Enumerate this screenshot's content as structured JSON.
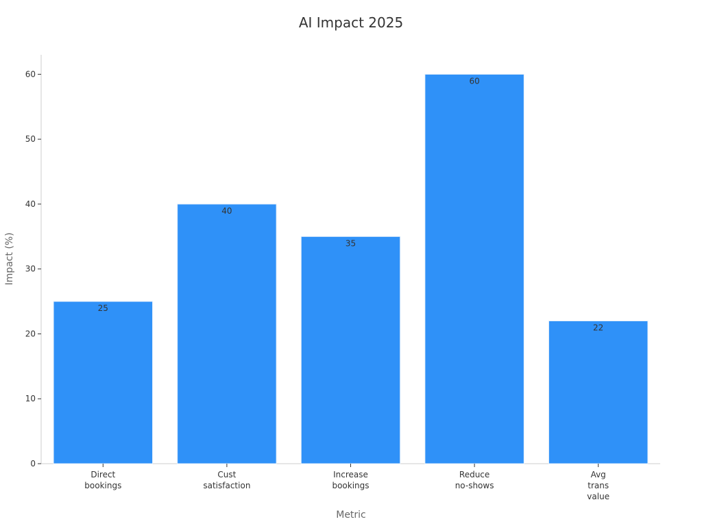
{
  "chart_data": {
    "type": "bar",
    "title": "AI Impact 2025",
    "xlabel": "Metric",
    "ylabel": "Impact (%)",
    "categories": [
      [
        "Direct",
        "bookings"
      ],
      [
        "Cust",
        "satisfaction"
      ],
      [
        "Increase",
        "bookings"
      ],
      [
        "Reduce",
        "no-shows"
      ],
      [
        "Avg",
        "trans",
        "value"
      ]
    ],
    "values": [
      25,
      40,
      35,
      60,
      22
    ],
    "ylim": [
      0,
      63
    ],
    "yticks": [
      0,
      10,
      20,
      30,
      40,
      50,
      60
    ],
    "bar_color": "#2f91f8",
    "grid": false,
    "legend": "none"
  }
}
